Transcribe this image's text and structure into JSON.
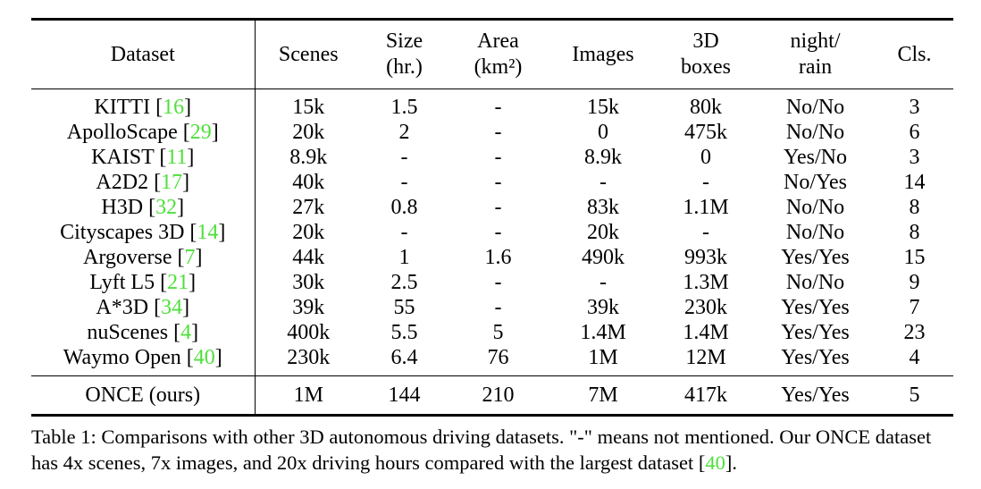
{
  "table": {
    "columns": [
      {
        "l1": "Dataset",
        "l2": ""
      },
      {
        "l1": "Scenes",
        "l2": ""
      },
      {
        "l1": "Size",
        "l2": "(hr.)"
      },
      {
        "l1": "Area",
        "l2": "(km²)"
      },
      {
        "l1": "Images",
        "l2": ""
      },
      {
        "l1": "3D",
        "l2": "boxes"
      },
      {
        "l1": "night/",
        "l2": "rain"
      },
      {
        "l1": "Cls.",
        "l2": ""
      }
    ],
    "rows": [
      {
        "name": "KITTI",
        "ref": "16",
        "cells": [
          "15k",
          "1.5",
          "-",
          "15k",
          "80k",
          "No/No",
          "3"
        ]
      },
      {
        "name": "ApolloScape",
        "ref": "29",
        "cells": [
          "20k",
          "2",
          "-",
          "0",
          "475k",
          "No/No",
          "6"
        ]
      },
      {
        "name": "KAIST",
        "ref": "11",
        "cells": [
          "8.9k",
          "-",
          "-",
          "8.9k",
          "0",
          "Yes/No",
          "3"
        ]
      },
      {
        "name": "A2D2",
        "ref": "17",
        "cells": [
          "40k",
          "-",
          "-",
          "-",
          "-",
          "No/Yes",
          "14"
        ]
      },
      {
        "name": "H3D",
        "ref": "32",
        "cells": [
          "27k",
          "0.8",
          "-",
          "83k",
          "1.1M",
          "No/No",
          "8"
        ]
      },
      {
        "name": "Cityscapes 3D",
        "ref": "14",
        "cells": [
          "20k",
          "-",
          "-",
          "20k",
          "-",
          "No/No",
          "8"
        ]
      },
      {
        "name": "Argoverse",
        "ref": "7",
        "cells": [
          "44k",
          "1",
          "1.6",
          "490k",
          "993k",
          "Yes/Yes",
          "15"
        ]
      },
      {
        "name": "Lyft L5",
        "ref": "21",
        "cells": [
          "30k",
          "2.5",
          "-",
          "-",
          "1.3M",
          "No/No",
          "9"
        ]
      },
      {
        "name": "A*3D",
        "ref": "34",
        "cells": [
          "39k",
          "55",
          "-",
          "39k",
          "230k",
          "Yes/Yes",
          "7"
        ]
      },
      {
        "name": "nuScenes",
        "ref": "4",
        "cells": [
          "400k",
          "5.5",
          "5",
          "1.4M",
          "1.4M",
          "Yes/Yes",
          "23"
        ]
      },
      {
        "name": "Waymo Open",
        "ref": "40",
        "cells": [
          "230k",
          "6.4",
          "76",
          "1M",
          "12M",
          "Yes/Yes",
          "4"
        ]
      }
    ],
    "ours": {
      "name": "ONCE (ours)",
      "cells": [
        "1M",
        "144",
        "210",
        "7M",
        "417k",
        "Yes/Yes",
        "5"
      ],
      "bold": [
        true,
        true,
        true,
        true,
        false,
        true,
        false
      ]
    }
  },
  "caption": {
    "part1": "Table 1: Comparisons with other 3D autonomous driving datasets. \"-\" means not mentioned. Our ONCE dataset has 4x scenes, 7x images, and 20x driving hours compared with the largest dataset [",
    "ref": "40",
    "part2": "]."
  },
  "colors": {
    "citation_green": "#4de03a",
    "text": "#000000"
  }
}
